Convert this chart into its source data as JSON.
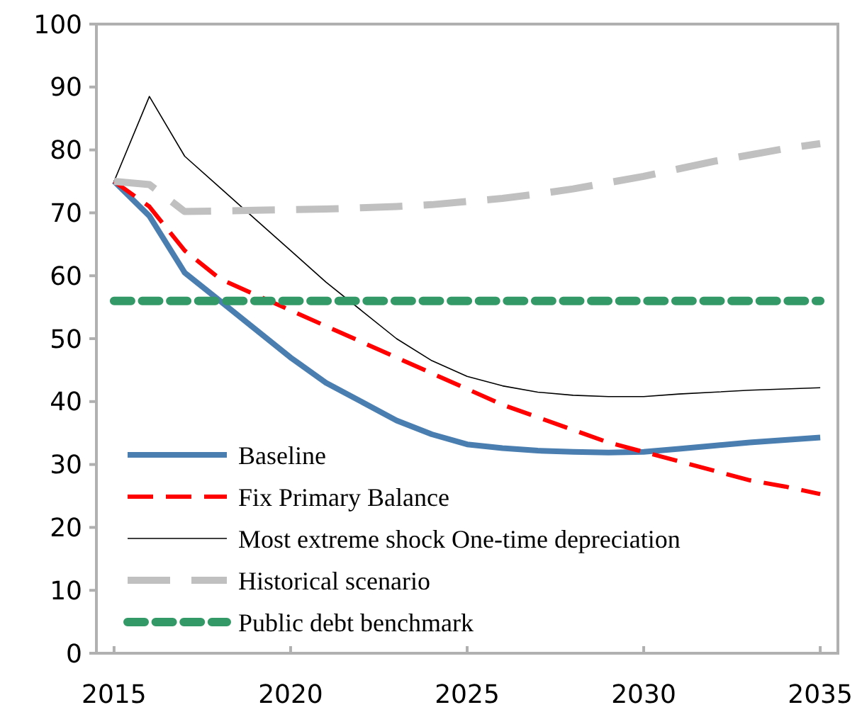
{
  "chart_data": {
    "type": "line",
    "x": [
      2015,
      2016,
      2017,
      2018,
      2019,
      2020,
      2021,
      2022,
      2023,
      2024,
      2025,
      2026,
      2027,
      2028,
      2029,
      2030,
      2031,
      2032,
      2033,
      2034,
      2035
    ],
    "xlim": [
      2014.5,
      2035.5
    ],
    "xticks": [
      2015,
      2020,
      2025,
      2030,
      2035
    ],
    "ylim": [
      0,
      100
    ],
    "yticks": [
      0,
      10,
      20,
      30,
      40,
      50,
      60,
      70,
      80,
      90,
      100
    ],
    "grid": false,
    "legend": "bottom left",
    "series": [
      {
        "name": "Baseline",
        "color": "#4a7eb0",
        "line_style": "solid",
        "values": [
          75,
          69.5,
          60.5,
          56,
          51.5,
          47,
          43,
          40,
          37,
          34.8,
          33.2,
          32.6,
          32.2,
          32,
          31.9,
          32,
          32.5,
          33,
          33.5,
          33.9,
          34.3
        ]
      },
      {
        "name": "Fix Primary Balance",
        "color": "#ff0000",
        "line_style": "dashed",
        "values": [
          75,
          71,
          64,
          59.5,
          57,
          54.5,
          52,
          49.5,
          47,
          44.5,
          42,
          39.5,
          37.5,
          35.5,
          33.5,
          32,
          30.5,
          29,
          27.5,
          26.5,
          25.3
        ]
      },
      {
        "name": "Most extreme shock One-time depreciation",
        "color": "#000000",
        "line_style": "solid",
        "values": [
          75,
          88.5,
          79,
          74,
          69,
          64,
          59,
          54.5,
          50,
          46.5,
          44,
          42.5,
          41.5,
          41,
          40.8,
          40.8,
          41.2,
          41.5,
          41.8,
          42,
          42.2
        ]
      },
      {
        "name": "Historical scenario",
        "color": "#c0c0c0",
        "line_style": "dashed",
        "values": [
          75,
          74.5,
          70.2,
          70.3,
          70.4,
          70.5,
          70.6,
          70.8,
          71,
          71.3,
          71.8,
          72.3,
          73,
          73.8,
          74.8,
          75.8,
          77,
          78.2,
          79.2,
          80.2,
          81
        ]
      },
      {
        "name": "Public debt benchmark",
        "color": "#339966",
        "line_style": "dotted",
        "values": [
          56,
          56,
          56,
          56,
          56,
          56,
          56,
          56,
          56,
          56,
          56,
          56,
          56,
          56,
          56,
          56,
          56,
          56,
          56,
          56,
          56
        ]
      }
    ]
  }
}
